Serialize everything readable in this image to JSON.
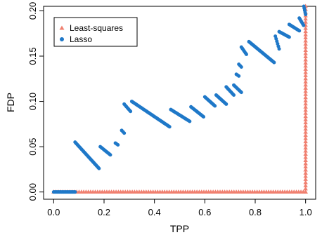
{
  "chart_data": {
    "type": "scatter",
    "xlabel": "TPP",
    "ylabel": "FDP",
    "xlim": [
      -0.04,
      1.04
    ],
    "ylim": [
      -0.008,
      0.205
    ],
    "xticks": [
      0.0,
      0.2,
      0.4,
      0.6,
      0.8,
      1.0
    ],
    "xtick_labels": [
      "0.0",
      "0.2",
      "0.4",
      "0.6",
      "0.8",
      "1.0"
    ],
    "yticks": [
      0.0,
      0.05,
      0.1,
      0.15,
      0.2
    ],
    "ytick_labels": [
      "0.00",
      "0.05",
      "0.10",
      "0.15",
      "0.20"
    ],
    "grid": false,
    "legend_position": "top-left",
    "series": [
      {
        "name": "Least-squares",
        "marker": "triangle",
        "color": "#f08070",
        "segments": [
          {
            "x_from": 0.0,
            "x_to": 1.0,
            "y_from": 0.0,
            "y_to": 0.0,
            "count": 110
          },
          {
            "x_from": 1.0,
            "x_to": 1.0,
            "y_from": 0.0,
            "y_to": 0.205,
            "count": 60
          }
        ]
      },
      {
        "name": "Lasso",
        "marker": "circle",
        "color": "#1f78c8",
        "segments": [
          {
            "x_from": 0.0,
            "x_to": 0.085,
            "y_from": 0.0,
            "y_to": 0.0,
            "count": 20
          },
          {
            "x_from": 0.085,
            "x_to": 0.18,
            "y_from": 0.055,
            "y_to": 0.026,
            "count": 30
          },
          {
            "x_from": 0.185,
            "x_to": 0.225,
            "y_from": 0.05,
            "y_to": 0.041,
            "count": 12
          },
          {
            "x_from": 0.245,
            "x_to": 0.255,
            "y_from": 0.054,
            "y_to": 0.052,
            "count": 3
          },
          {
            "x_from": 0.27,
            "x_to": 0.28,
            "y_from": 0.068,
            "y_to": 0.065,
            "count": 3
          },
          {
            "x_from": 0.28,
            "x_to": 0.305,
            "y_from": 0.097,
            "y_to": 0.089,
            "count": 7
          },
          {
            "x_from": 0.31,
            "x_to": 0.46,
            "y_from": 0.1,
            "y_to": 0.072,
            "count": 48
          },
          {
            "x_from": 0.465,
            "x_to": 0.54,
            "y_from": 0.091,
            "y_to": 0.078,
            "count": 24
          },
          {
            "x_from": 0.545,
            "x_to": 0.595,
            "y_from": 0.094,
            "y_to": 0.083,
            "count": 16
          },
          {
            "x_from": 0.6,
            "x_to": 0.64,
            "y_from": 0.105,
            "y_to": 0.095,
            "count": 14
          },
          {
            "x_from": 0.645,
            "x_to": 0.685,
            "y_from": 0.107,
            "y_to": 0.097,
            "count": 13
          },
          {
            "x_from": 0.685,
            "x_to": 0.715,
            "y_from": 0.116,
            "y_to": 0.107,
            "count": 9
          },
          {
            "x_from": 0.715,
            "x_to": 0.745,
            "y_from": 0.118,
            "y_to": 0.11,
            "count": 9
          },
          {
            "x_from": 0.725,
            "x_to": 0.735,
            "y_from": 0.13,
            "y_to": 0.128,
            "count": 3
          },
          {
            "x_from": 0.735,
            "x_to": 0.745,
            "y_from": 0.141,
            "y_to": 0.138,
            "count": 3
          },
          {
            "x_from": 0.745,
            "x_to": 0.765,
            "y_from": 0.16,
            "y_to": 0.152,
            "count": 7
          },
          {
            "x_from": 0.775,
            "x_to": 0.875,
            "y_from": 0.166,
            "y_to": 0.143,
            "count": 34
          },
          {
            "x_from": 0.88,
            "x_to": 0.895,
            "y_from": 0.172,
            "y_to": 0.158,
            "count": 6
          },
          {
            "x_from": 0.895,
            "x_to": 0.935,
            "y_from": 0.177,
            "y_to": 0.171,
            "count": 13
          },
          {
            "x_from": 0.935,
            "x_to": 0.975,
            "y_from": 0.185,
            "y_to": 0.178,
            "count": 13
          },
          {
            "x_from": 0.975,
            "x_to": 0.992,
            "y_from": 0.192,
            "y_to": 0.184,
            "count": 7
          },
          {
            "x_from": 0.993,
            "x_to": 1.0,
            "y_from": 0.205,
            "y_to": 0.196,
            "count": 5
          }
        ]
      }
    ]
  }
}
